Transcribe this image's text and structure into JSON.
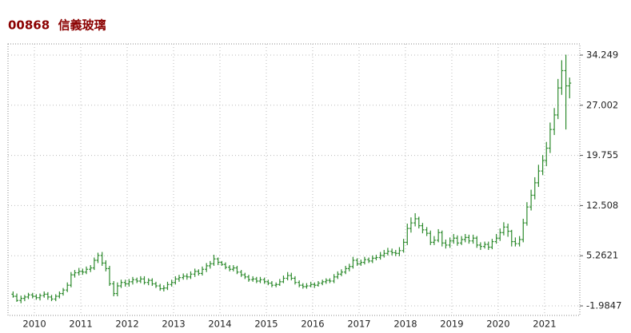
{
  "chart_data": {
    "type": "ohlc",
    "title": "00868  信義玻璃",
    "color": "#2e8b2e",
    "grid": true,
    "xlim": [
      2009.43,
      2021.76
    ],
    "xticks": [
      2010,
      2011,
      2012,
      2013,
      2014,
      2015,
      2016,
      2017,
      2018,
      2019,
      2020,
      2021
    ],
    "ylim": [
      -3.365,
      35.86
    ],
    "yticks": [
      -1.9847,
      5.2621,
      12.508,
      19.755,
      27.002,
      34.249
    ],
    "x": [
      2009.54,
      2009.62,
      2009.71,
      2009.79,
      2009.87,
      2009.96,
      2010.04,
      2010.12,
      2010.21,
      2010.29,
      2010.37,
      2010.46,
      2010.54,
      2010.62,
      2010.71,
      2010.79,
      2010.87,
      2010.96,
      2011.04,
      2011.12,
      2011.21,
      2011.29,
      2011.37,
      2011.46,
      2011.54,
      2011.62,
      2011.71,
      2011.79,
      2011.87,
      2011.96,
      2012.04,
      2012.12,
      2012.21,
      2012.29,
      2012.37,
      2012.46,
      2012.54,
      2012.62,
      2012.71,
      2012.79,
      2012.87,
      2012.96,
      2013.04,
      2013.12,
      2013.21,
      2013.29,
      2013.37,
      2013.46,
      2013.54,
      2013.62,
      2013.71,
      2013.79,
      2013.87,
      2013.96,
      2014.04,
      2014.12,
      2014.21,
      2014.29,
      2014.37,
      2014.46,
      2014.54,
      2014.62,
      2014.71,
      2014.79,
      2014.87,
      2014.96,
      2015.04,
      2015.12,
      2015.21,
      2015.29,
      2015.37,
      2015.46,
      2015.54,
      2015.62,
      2015.71,
      2015.79,
      2015.87,
      2015.96,
      2016.04,
      2016.12,
      2016.21,
      2016.29,
      2016.37,
      2016.46,
      2016.54,
      2016.62,
      2016.71,
      2016.79,
      2016.87,
      2016.96,
      2017.04,
      2017.12,
      2017.21,
      2017.29,
      2017.37,
      2017.46,
      2017.54,
      2017.62,
      2017.71,
      2017.79,
      2017.87,
      2017.96,
      2018.04,
      2018.12,
      2018.21,
      2018.29,
      2018.37,
      2018.46,
      2018.54,
      2018.62,
      2018.71,
      2018.79,
      2018.87,
      2018.96,
      2019.04,
      2019.12,
      2019.21,
      2019.29,
      2019.37,
      2019.46,
      2019.54,
      2019.62,
      2019.71,
      2019.79,
      2019.87,
      2019.96,
      2020.04,
      2020.12,
      2020.21,
      2020.29,
      2020.37,
      2020.46,
      2020.54,
      2020.62,
      2020.71,
      2020.79,
      2020.87,
      2020.96,
      2021.04,
      2021.12,
      2021.21,
      2021.29,
      2021.37,
      2021.46,
      2021.54
    ],
    "open": [
      -0.3,
      -0.6,
      -1.2,
      -0.9,
      -0.7,
      -0.4,
      -0.6,
      -0.8,
      -0.5,
      -0.3,
      -0.7,
      -1.0,
      -0.6,
      -0.2,
      0.3,
      1.0,
      2.5,
      2.8,
      3.0,
      2.9,
      3.3,
      3.5,
      4.6,
      5.3,
      4.2,
      3.4,
      1.2,
      -0.2,
      0.9,
      1.4,
      1.2,
      1.5,
      1.8,
      1.6,
      1.9,
      1.4,
      1.7,
      1.2,
      0.9,
      0.5,
      0.6,
      1.1,
      1.4,
      1.9,
      2.1,
      2.3,
      2.2,
      2.6,
      3.0,
      2.7,
      3.3,
      3.8,
      4.1,
      4.8,
      4.3,
      4.0,
      3.6,
      3.3,
      3.5,
      2.9,
      2.5,
      2.2,
      1.8,
      1.9,
      1.6,
      1.8,
      1.5,
      1.3,
      1.0,
      1.1,
      1.5,
      2.0,
      2.4,
      2.0,
      1.4,
      1.0,
      0.8,
      0.9,
      1.1,
      1.0,
      1.3,
      1.5,
      1.7,
      1.6,
      2.2,
      2.6,
      2.9,
      3.4,
      3.7,
      4.6,
      4.1,
      4.3,
      4.7,
      4.5,
      4.9,
      5.0,
      5.3,
      5.6,
      5.9,
      5.7,
      5.6,
      6.0,
      7.2,
      9.2,
      10.0,
      10.6,
      9.6,
      9.0,
      8.5,
      7.2,
      7.5,
      8.6,
      7.1,
      6.8,
      7.4,
      7.8,
      7.1,
      7.6,
      7.9,
      7.4,
      7.8,
      6.8,
      6.6,
      6.9,
      6.5,
      7.3,
      7.8,
      8.6,
      9.4,
      8.8,
      7.3,
      7.0,
      7.6,
      10.0,
      12.3,
      14.0,
      15.8,
      17.5,
      19.0,
      20.8,
      23.5,
      25.6,
      29.5,
      32.0,
      29.8
    ],
    "high": [
      0.1,
      -0.2,
      -0.5,
      -0.4,
      -0.1,
      -0.1,
      -0.3,
      -0.2,
      0.1,
      0.0,
      -0.4,
      -0.3,
      0.1,
      0.6,
      1.4,
      2.9,
      3.2,
      3.5,
      3.4,
      3.7,
      3.9,
      5.0,
      5.7,
      5.8,
      4.6,
      3.8,
      1.6,
      1.4,
      1.8,
      1.8,
      1.9,
      2.2,
      2.1,
      2.3,
      2.3,
      2.0,
      2.0,
      1.5,
      1.2,
      1.0,
      1.5,
      1.8,
      2.3,
      2.5,
      2.7,
      2.7,
      3.0,
      3.4,
      3.3,
      3.7,
      4.2,
      4.5,
      5.4,
      5.0,
      4.5,
      4.3,
      3.9,
      3.9,
      3.8,
      3.2,
      2.8,
      2.5,
      2.3,
      2.2,
      2.2,
      2.1,
      1.8,
      1.6,
      1.4,
      1.9,
      2.4,
      2.9,
      2.8,
      2.3,
      1.7,
      1.3,
      1.3,
      1.5,
      1.4,
      1.6,
      1.8,
      2.0,
      2.0,
      2.6,
      3.0,
      3.3,
      3.8,
      4.1,
      5.1,
      4.9,
      4.7,
      5.1,
      5.0,
      5.3,
      5.4,
      5.8,
      6.1,
      6.4,
      6.3,
      6.1,
      6.5,
      7.7,
      9.9,
      10.8,
      11.4,
      10.9,
      10.0,
      9.4,
      8.9,
      8.1,
      9.1,
      8.9,
      7.6,
      7.9,
      8.4,
      8.2,
      8.1,
      8.4,
      8.3,
      8.3,
      8.1,
      7.2,
      7.3,
      7.3,
      7.7,
      8.4,
      9.2,
      10.1,
      9.9,
      9.0,
      7.9,
      8.1,
      10.6,
      13.0,
      14.8,
      16.6,
      18.4,
      19.8,
      21.7,
      24.5,
      26.6,
      30.8,
      33.5,
      34.3,
      31.0
    ],
    "low": [
      -0.8,
      -1.4,
      -1.6,
      -1.3,
      -1.0,
      -0.9,
      -1.1,
      -1.2,
      -0.8,
      -1.1,
      -1.3,
      -1.3,
      -0.9,
      -0.5,
      0.0,
      0.7,
      2.1,
      2.4,
      2.5,
      2.6,
      2.9,
      3.2,
      4.2,
      3.8,
      3.0,
      0.9,
      -0.6,
      -0.6,
      0.6,
      0.8,
      0.8,
      1.1,
      1.3,
      1.3,
      1.1,
      1.0,
      0.9,
      0.6,
      0.2,
      0.1,
      0.3,
      0.8,
      1.1,
      1.5,
      1.8,
      1.8,
      1.9,
      2.2,
      2.4,
      2.4,
      2.9,
      3.4,
      3.8,
      3.9,
      3.8,
      3.3,
      3.0,
      3.0,
      2.6,
      2.2,
      1.9,
      1.5,
      1.5,
      1.3,
      1.3,
      1.2,
      1.0,
      0.7,
      0.7,
      0.9,
      1.3,
      1.7,
      1.7,
      1.1,
      0.7,
      0.5,
      0.5,
      0.7,
      0.6,
      0.8,
      1.0,
      1.2,
      1.3,
      1.3,
      1.9,
      2.3,
      2.6,
      3.0,
      3.4,
      3.8,
      3.8,
      4.0,
      4.2,
      4.2,
      4.6,
      4.7,
      5.0,
      5.3,
      5.3,
      5.2,
      5.2,
      5.7,
      6.8,
      8.6,
      9.5,
      9.2,
      8.5,
      8.1,
      6.8,
      6.8,
      7.2,
      6.6,
      6.3,
      6.4,
      7.0,
      6.7,
      6.8,
      7.2,
      7.0,
      7.0,
      6.4,
      6.1,
      6.3,
      6.1,
      6.2,
      7.0,
      7.4,
      8.2,
      8.0,
      6.6,
      6.6,
      6.6,
      7.2,
      9.6,
      11.8,
      13.4,
      15.2,
      16.9,
      18.2,
      20.1,
      22.7,
      25.0,
      28.5,
      23.5,
      28.0
    ],
    "close": [
      -0.6,
      -1.2,
      -0.9,
      -0.7,
      -0.4,
      -0.6,
      -0.8,
      -0.5,
      -0.3,
      -0.7,
      -1.0,
      -0.6,
      -0.2,
      0.3,
      1.0,
      2.5,
      2.8,
      3.0,
      2.9,
      3.3,
      3.5,
      4.6,
      5.3,
      4.2,
      3.4,
      1.2,
      -0.2,
      0.9,
      1.4,
      1.2,
      1.5,
      1.8,
      1.6,
      1.9,
      1.4,
      1.7,
      1.2,
      0.9,
      0.5,
      0.6,
      1.1,
      1.4,
      1.9,
      2.1,
      2.3,
      2.2,
      2.6,
      3.0,
      2.7,
      3.3,
      3.8,
      4.1,
      4.8,
      4.3,
      4.0,
      3.6,
      3.3,
      3.5,
      2.9,
      2.5,
      2.2,
      1.8,
      1.9,
      1.6,
      1.8,
      1.5,
      1.3,
      1.0,
      1.1,
      1.5,
      2.0,
      2.4,
      2.0,
      1.4,
      1.0,
      0.8,
      0.9,
      1.1,
      1.0,
      1.3,
      1.5,
      1.7,
      1.6,
      2.2,
      2.6,
      2.9,
      3.4,
      3.7,
      4.6,
      4.1,
      4.3,
      4.7,
      4.5,
      4.9,
      5.0,
      5.3,
      5.6,
      5.9,
      5.7,
      5.6,
      6.0,
      7.2,
      9.2,
      10.0,
      10.6,
      9.6,
      9.0,
      8.5,
      7.2,
      7.5,
      8.6,
      7.1,
      6.8,
      7.4,
      7.8,
      7.1,
      7.6,
      7.9,
      7.4,
      7.8,
      6.8,
      6.6,
      6.9,
      6.5,
      7.3,
      7.8,
      8.6,
      9.4,
      8.8,
      7.3,
      7.0,
      7.6,
      10.0,
      12.3,
      14.0,
      15.8,
      17.5,
      19.0,
      20.8,
      23.5,
      25.6,
      29.5,
      32.0,
      29.8,
      30.2
    ]
  }
}
